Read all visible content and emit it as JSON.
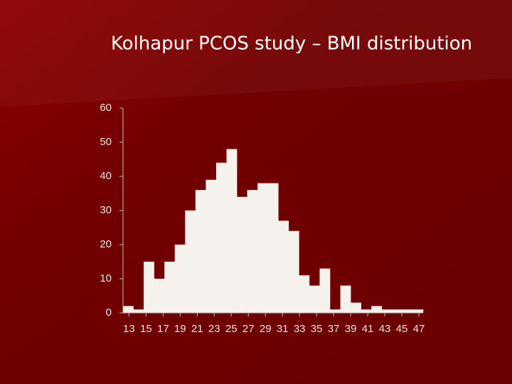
{
  "chart_data": {
    "type": "bar",
    "title": "Kolhapur  PCOS study – BMI distribution",
    "categories": [
      null,
      null,
      null,
      null,
      null,
      null,
      null,
      null,
      null,
      null,
      null,
      null,
      null,
      null,
      null,
      null,
      null,
      null,
      null,
      null,
      null,
      null,
      null,
      null,
      null,
      null,
      null,
      null,
      null
    ],
    "values": [
      2,
      1,
      15,
      10,
      15,
      20,
      30,
      36,
      39,
      44,
      48,
      34,
      36,
      38,
      38,
      27,
      24,
      11,
      8,
      13,
      1,
      8,
      3,
      1,
      2,
      1,
      1,
      1,
      1
    ],
    "color": "#f5f2ee",
    "ylim": [
      0,
      60
    ],
    "yticks": [
      0,
      10,
      20,
      30,
      40,
      50,
      60
    ],
    "xlim": [
      12.3,
      47.5
    ],
    "xticks": [
      13,
      15,
      17,
      19,
      21,
      23,
      25,
      27,
      29,
      31,
      33,
      35,
      37,
      39,
      41,
      43,
      45,
      47
    ]
  }
}
